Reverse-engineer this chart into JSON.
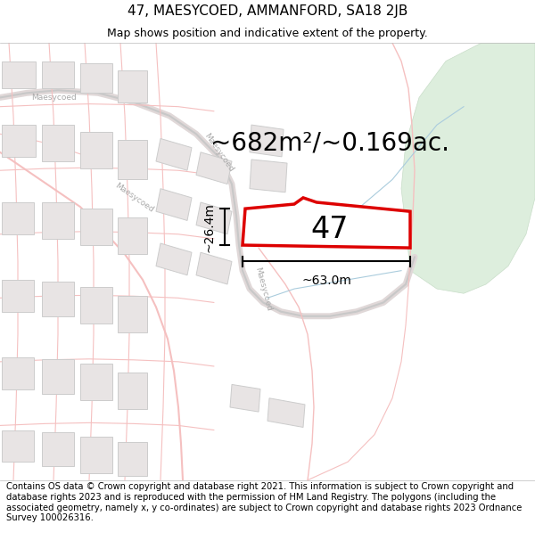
{
  "title": "47, MAESYCOED, AMMANFORD, SA18 2JB",
  "subtitle": "Map shows position and indicative extent of the property.",
  "area_text": "~682m²/~0.169ac.",
  "label_47": "47",
  "dim_horizontal": "~63.0m",
  "dim_vertical": "~26.4m",
  "footer": "Contains OS data © Crown copyright and database right 2021. This information is subject to Crown copyright and database rights 2023 and is reproduced with the permission of HM Land Registry. The polygons (including the associated geometry, namely x, y co-ordinates) are subject to Crown copyright and database rights 2023 Ordnance Survey 100026316.",
  "bg_color": "#ffffff",
  "map_bg": "#ffffff",
  "plot_fill": "#ffffff",
  "plot_edge": "#dd0000",
  "road_color": "#f5c0c0",
  "road_color2": "#c8c8c8",
  "building_color": "#e8e4e4",
  "building_edge": "#cccccc",
  "green_color": "#ddeedd",
  "green_edge": "#c8ddc8",
  "road_label_color": "#aaaaaa",
  "blue_line_color": "#aaccdd",
  "title_fontsize": 11,
  "subtitle_fontsize": 9,
  "area_fontsize": 20,
  "label_fontsize": 24,
  "dim_fontsize": 10,
  "footer_fontsize": 7.2
}
